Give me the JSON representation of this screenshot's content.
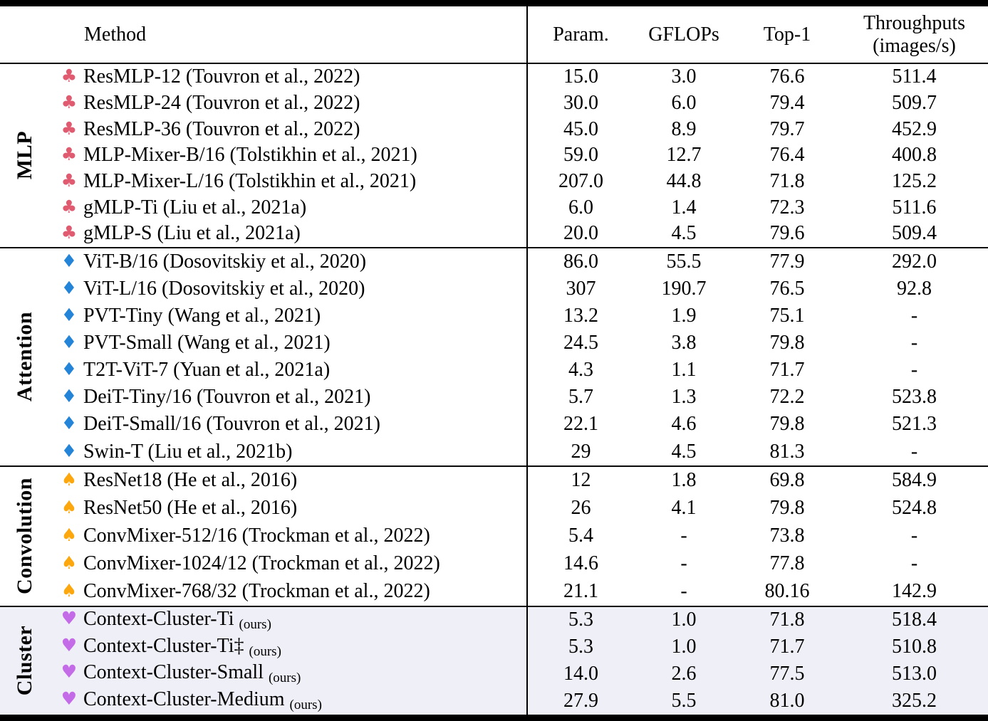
{
  "table": {
    "header": {
      "method": "Method",
      "param": "Param.",
      "gflops": "GFLOPs",
      "top1": "Top-1",
      "throughput_line1": "Throughputs",
      "throughput_line2": "(images/s)"
    },
    "colors": {
      "club": "#E05A70",
      "diamond": "#2484D8",
      "spade": "#FCA70D",
      "heart": "#C46CE8",
      "highlight_bg": "#EFEFF7"
    },
    "groups": [
      {
        "label": "MLP",
        "suit": "♣",
        "suit_name": "club-suit-icon",
        "suit_color": "#E05A70",
        "highlight": false,
        "rows": [
          {
            "method": "ResMLP-12 (Touvron et al., 2022)",
            "ours": null,
            "param": "15.0",
            "gflops": "3.0",
            "top1": "76.6",
            "throughput": "511.4"
          },
          {
            "method": "ResMLP-24 (Touvron et al., 2022)",
            "ours": null,
            "param": "30.0",
            "gflops": "6.0",
            "top1": "79.4",
            "throughput": "509.7"
          },
          {
            "method": "ResMLP-36 (Touvron et al., 2022)",
            "ours": null,
            "param": "45.0",
            "gflops": "8.9",
            "top1": "79.7",
            "throughput": "452.9"
          },
          {
            "method": "MLP-Mixer-B/16 (Tolstikhin et al., 2021)",
            "ours": null,
            "param": "59.0",
            "gflops": "12.7",
            "top1": "76.4",
            "throughput": "400.8"
          },
          {
            "method": "MLP-Mixer-L/16 (Tolstikhin et al., 2021)",
            "ours": null,
            "param": "207.0",
            "gflops": "44.8",
            "top1": "71.8",
            "throughput": "125.2"
          },
          {
            "method": "gMLP-Ti (Liu et al., 2021a)",
            "ours": null,
            "param": "6.0",
            "gflops": "1.4",
            "top1": "72.3",
            "throughput": "511.6"
          },
          {
            "method": "gMLP-S (Liu et al., 2021a)",
            "ours": null,
            "param": "20.0",
            "gflops": "4.5",
            "top1": "79.6",
            "throughput": "509.4"
          }
        ]
      },
      {
        "label": "Attention",
        "suit": "♦",
        "suit_name": "diamond-suit-icon",
        "suit_color": "#2484D8",
        "highlight": false,
        "rows": [
          {
            "method": "ViT-B/16 (Dosovitskiy et al., 2020)",
            "ours": null,
            "param": "86.0",
            "gflops": "55.5",
            "top1": "77.9",
            "throughput": "292.0"
          },
          {
            "method": "ViT-L/16 (Dosovitskiy et al., 2020)",
            "ours": null,
            "param": "307",
            "gflops": "190.7",
            "top1": "76.5",
            "throughput": "92.8"
          },
          {
            "method": "PVT-Tiny (Wang et al., 2021)",
            "ours": null,
            "param": "13.2",
            "gflops": "1.9",
            "top1": "75.1",
            "throughput": "-"
          },
          {
            "method": "PVT-Small (Wang et al., 2021)",
            "ours": null,
            "param": "24.5",
            "gflops": "3.8",
            "top1": "79.8",
            "throughput": "-"
          },
          {
            "method": "T2T-ViT-7  (Yuan et al., 2021a)",
            "ours": null,
            "param": "4.3",
            "gflops": "1.1",
            "top1": "71.7",
            "throughput": "-"
          },
          {
            "method": "DeiT-Tiny/16 (Touvron et al., 2021)",
            "ours": null,
            "param": "5.7",
            "gflops": "1.3",
            "top1": "72.2",
            "throughput": "523.8"
          },
          {
            "method": "DeiT-Small/16 (Touvron et al., 2021)",
            "ours": null,
            "param": "22.1",
            "gflops": "4.6",
            "top1": "79.8",
            "throughput": "521.3"
          },
          {
            "method": "Swin-T (Liu et al., 2021b)",
            "ours": null,
            "param": "29",
            "gflops": "4.5",
            "top1": "81.3",
            "throughput": "-"
          }
        ]
      },
      {
        "label": "Convolution",
        "suit": "♠",
        "suit_name": "spade-suit-icon",
        "suit_color": "#FCA70D",
        "highlight": false,
        "rows": [
          {
            "method": "ResNet18 (He et al., 2016)",
            "ours": null,
            "param": "12",
            "gflops": "1.8",
            "top1": "69.8",
            "throughput": "584.9"
          },
          {
            "method": "ResNet50 (He et al., 2016)",
            "ours": null,
            "param": "26",
            "gflops": "4.1",
            "top1": "79.8",
            "throughput": "524.8"
          },
          {
            "method": "ConvMixer-512/16 (Trockman et al., 2022)",
            "ours": null,
            "param": "5.4",
            "gflops": "-",
            "top1": "73.8",
            "throughput": "-"
          },
          {
            "method": "ConvMixer-1024/12 (Trockman et al., 2022)",
            "ours": null,
            "param": "14.6",
            "gflops": "-",
            "top1": "77.8",
            "throughput": "-"
          },
          {
            "method": "ConvMixer-768/32 (Trockman et al., 2022)",
            "ours": null,
            "param": "21.1",
            "gflops": "-",
            "top1": "80.16",
            "throughput": "142.9"
          }
        ]
      },
      {
        "label": "Cluster",
        "suit": "♥",
        "suit_name": "heart-suit-icon",
        "suit_color": "#C46CE8",
        "highlight": true,
        "rows": [
          {
            "method": "Context-Cluster-Ti",
            "ours": "(ours)",
            "param": "5.3",
            "gflops": "1.0",
            "top1": "71.8",
            "throughput": "518.4"
          },
          {
            "method": "Context-Cluster-Ti‡",
            "ours": "(ours)",
            "param": "5.3",
            "gflops": "1.0",
            "top1": "71.7",
            "throughput": "510.8"
          },
          {
            "method": "Context-Cluster-Small",
            "ours": "(ours)",
            "param": "14.0",
            "gflops": "2.6",
            "top1": "77.5",
            "throughput": "513.0"
          },
          {
            "method": "Context-Cluster-Medium",
            "ours": "(ours)",
            "param": "27.9",
            "gflops": "5.5",
            "top1": "81.0",
            "throughput": "325.2"
          }
        ]
      }
    ]
  }
}
